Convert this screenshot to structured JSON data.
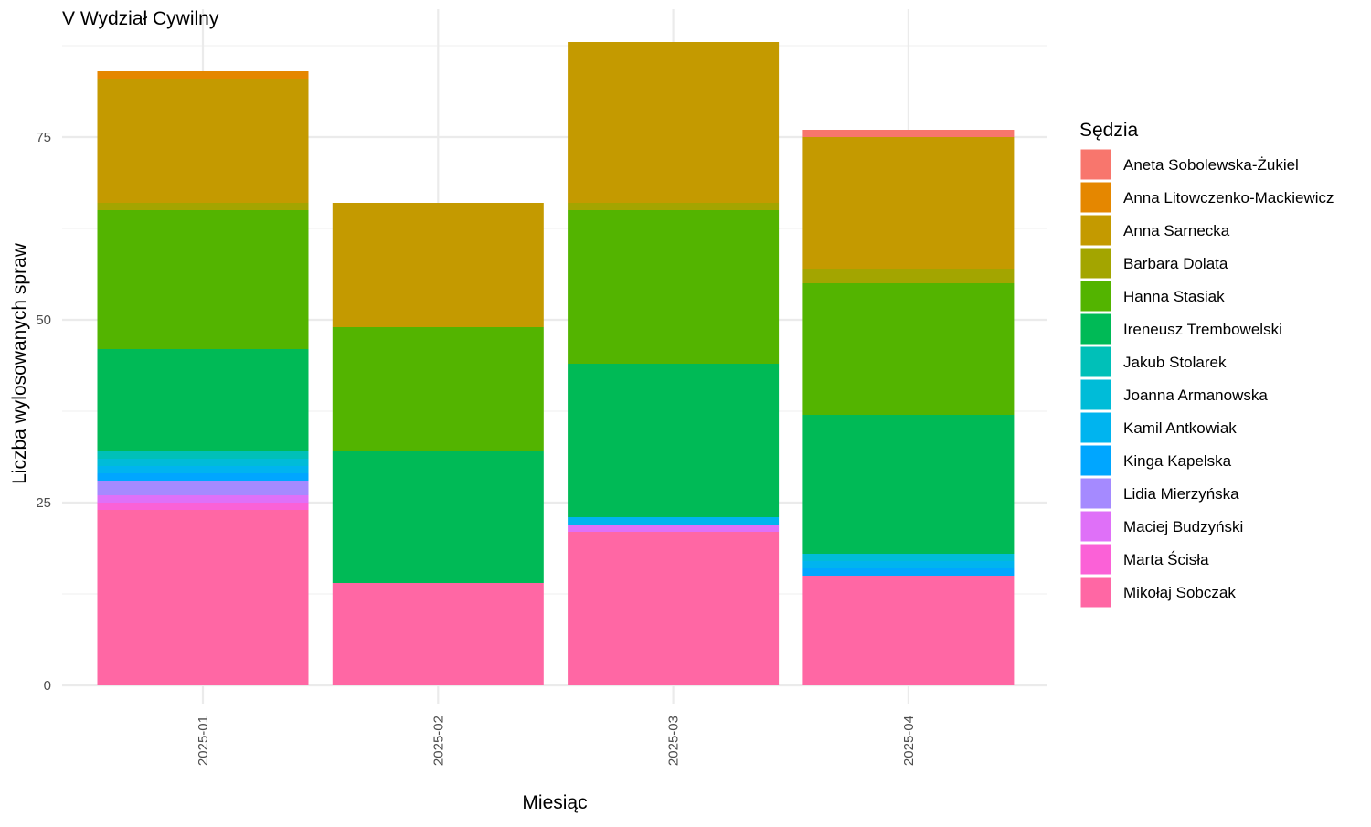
{
  "chart_data": {
    "type": "bar",
    "stacked": true,
    "title": "V Wydział Cywilny",
    "xlabel": "Miesiąc",
    "ylabel": "Liczba wylosowanych spraw",
    "categories": [
      "2025-01",
      "2025-02",
      "2025-03",
      "2025-04"
    ],
    "ylim": [
      0,
      90
    ],
    "yticks": [
      0,
      25,
      50,
      75
    ],
    "grid": true,
    "legend": {
      "title": "Sędzia",
      "placement": "right"
    },
    "series": [
      {
        "name": "Mikołaj Sobczak",
        "color": "#FF67A4",
        "values": [
          24,
          14,
          21,
          15
        ]
      },
      {
        "name": "Marta Ścisła",
        "color": "#FB61D7",
        "values": [
          1,
          0,
          0,
          0
        ]
      },
      {
        "name": "Maciej Budzyński",
        "color": "#DF70F8",
        "values": [
          1,
          0,
          1,
          0
        ]
      },
      {
        "name": "Lidia Mierzyńska",
        "color": "#A58AFF",
        "values": [
          2,
          0,
          0,
          0
        ]
      },
      {
        "name": "Kinga Kapelska",
        "color": "#00A6FF",
        "values": [
          1,
          0,
          0,
          1
        ]
      },
      {
        "name": "Kamil Antkowiak",
        "color": "#00B4EF",
        "values": [
          1,
          0,
          1,
          1
        ]
      },
      {
        "name": "Joanna Armanowska",
        "color": "#00BCD8",
        "values": [
          1,
          0,
          0,
          1
        ]
      },
      {
        "name": "Jakub Stolarek",
        "color": "#00C0B8",
        "values": [
          1,
          0,
          0,
          0
        ]
      },
      {
        "name": "Ireneusz Trembowelski",
        "color": "#00BA56",
        "values": [
          14,
          18,
          21,
          19
        ]
      },
      {
        "name": "Hanna Stasiak",
        "color": "#53B400",
        "values": [
          19,
          17,
          21,
          18
        ]
      },
      {
        "name": "Barbara Dolata",
        "color": "#A3A500",
        "values": [
          1,
          0,
          1,
          2
        ]
      },
      {
        "name": "Anna Sarnecka",
        "color": "#C49A00",
        "values": [
          17,
          17,
          22,
          18
        ]
      },
      {
        "name": "Anna Litowczenko-Mackiewicz",
        "color": "#E58700",
        "values": [
          1,
          0,
          0,
          0
        ]
      },
      {
        "name": "Aneta Sobolewska-Żukiel",
        "color": "#F8766D",
        "values": [
          0,
          0,
          0,
          1
        ]
      }
    ]
  }
}
